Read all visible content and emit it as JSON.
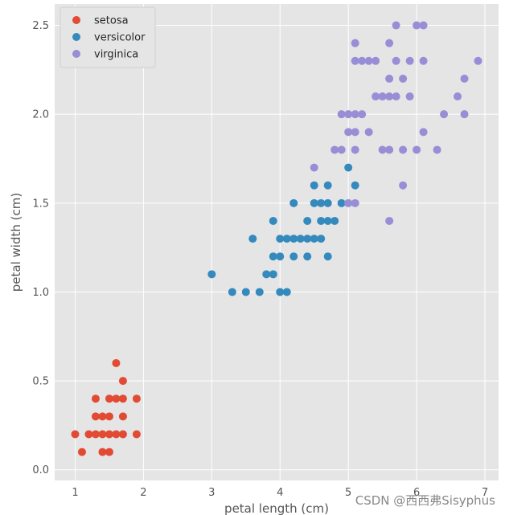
{
  "chart_data": {
    "type": "scatter",
    "title": "",
    "xlabel": "petal length (cm)",
    "ylabel": "petal width (cm)",
    "xlim": [
      0.7,
      7.2
    ],
    "ylim": [
      -0.06,
      2.62
    ],
    "xticks": [
      1,
      2,
      3,
      4,
      5,
      6,
      7
    ],
    "yticks": [
      0.0,
      0.5,
      1.0,
      1.5,
      2.0,
      2.5
    ],
    "grid": true,
    "legend_position": "top-left",
    "series": [
      {
        "name": "setosa",
        "color": "#E24A33",
        "points": [
          [
            1.0,
            0.2
          ],
          [
            1.1,
            0.1
          ],
          [
            1.2,
            0.2
          ],
          [
            1.3,
            0.2
          ],
          [
            1.3,
            0.3
          ],
          [
            1.3,
            0.4
          ],
          [
            1.4,
            0.1
          ],
          [
            1.4,
            0.2
          ],
          [
            1.4,
            0.3
          ],
          [
            1.5,
            0.1
          ],
          [
            1.5,
            0.2
          ],
          [
            1.5,
            0.3
          ],
          [
            1.5,
            0.4
          ],
          [
            1.6,
            0.2
          ],
          [
            1.6,
            0.4
          ],
          [
            1.6,
            0.6
          ],
          [
            1.7,
            0.2
          ],
          [
            1.7,
            0.3
          ],
          [
            1.7,
            0.4
          ],
          [
            1.7,
            0.5
          ],
          [
            1.9,
            0.2
          ],
          [
            1.9,
            0.4
          ]
        ]
      },
      {
        "name": "versicolor",
        "color": "#348ABD",
        "points": [
          [
            3.0,
            1.1
          ],
          [
            3.3,
            1.0
          ],
          [
            3.5,
            1.0
          ],
          [
            3.6,
            1.3
          ],
          [
            3.7,
            1.0
          ],
          [
            3.8,
            1.1
          ],
          [
            3.9,
            1.1
          ],
          [
            3.9,
            1.2
          ],
          [
            3.9,
            1.4
          ],
          [
            4.0,
            1.0
          ],
          [
            4.0,
            1.2
          ],
          [
            4.0,
            1.3
          ],
          [
            4.1,
            1.0
          ],
          [
            4.1,
            1.3
          ],
          [
            4.2,
            1.2
          ],
          [
            4.2,
            1.3
          ],
          [
            4.2,
            1.5
          ],
          [
            4.3,
            1.3
          ],
          [
            4.4,
            1.2
          ],
          [
            4.4,
            1.3
          ],
          [
            4.4,
            1.4
          ],
          [
            4.5,
            1.3
          ],
          [
            4.5,
            1.5
          ],
          [
            4.5,
            1.6
          ],
          [
            4.6,
            1.3
          ],
          [
            4.6,
            1.4
          ],
          [
            4.6,
            1.5
          ],
          [
            4.7,
            1.2
          ],
          [
            4.7,
            1.4
          ],
          [
            4.7,
            1.5
          ],
          [
            4.7,
            1.6
          ],
          [
            4.8,
            1.4
          ],
          [
            4.9,
            1.5
          ],
          [
            5.0,
            1.7
          ],
          [
            5.1,
            1.6
          ]
        ]
      },
      {
        "name": "virginica",
        "color": "#988ED5",
        "points": [
          [
            4.5,
            1.7
          ],
          [
            4.8,
            1.8
          ],
          [
            4.9,
            1.8
          ],
          [
            4.9,
            2.0
          ],
          [
            5.0,
            1.5
          ],
          [
            5.0,
            1.9
          ],
          [
            5.0,
            2.0
          ],
          [
            5.1,
            1.5
          ],
          [
            5.1,
            1.8
          ],
          [
            5.1,
            1.9
          ],
          [
            5.1,
            2.0
          ],
          [
            5.1,
            2.3
          ],
          [
            5.1,
            2.4
          ],
          [
            5.2,
            2.0
          ],
          [
            5.2,
            2.3
          ],
          [
            5.3,
            1.9
          ],
          [
            5.3,
            2.3
          ],
          [
            5.4,
            2.1
          ],
          [
            5.4,
            2.3
          ],
          [
            5.5,
            1.8
          ],
          [
            5.5,
            2.1
          ],
          [
            5.6,
            1.4
          ],
          [
            5.6,
            1.8
          ],
          [
            5.6,
            2.1
          ],
          [
            5.6,
            2.2
          ],
          [
            5.6,
            2.4
          ],
          [
            5.7,
            2.1
          ],
          [
            5.7,
            2.3
          ],
          [
            5.7,
            2.5
          ],
          [
            5.8,
            1.6
          ],
          [
            5.8,
            1.8
          ],
          [
            5.8,
            2.2
          ],
          [
            5.9,
            2.1
          ],
          [
            5.9,
            2.3
          ],
          [
            6.0,
            1.8
          ],
          [
            6.0,
            2.5
          ],
          [
            6.1,
            1.9
          ],
          [
            6.1,
            2.3
          ],
          [
            6.1,
            2.5
          ],
          [
            6.3,
            1.8
          ],
          [
            6.4,
            2.0
          ],
          [
            6.6,
            2.1
          ],
          [
            6.7,
            2.0
          ],
          [
            6.7,
            2.2
          ],
          [
            6.9,
            2.3
          ]
        ]
      }
    ]
  },
  "watermark": "CSDN @西西弗Sisyphus"
}
